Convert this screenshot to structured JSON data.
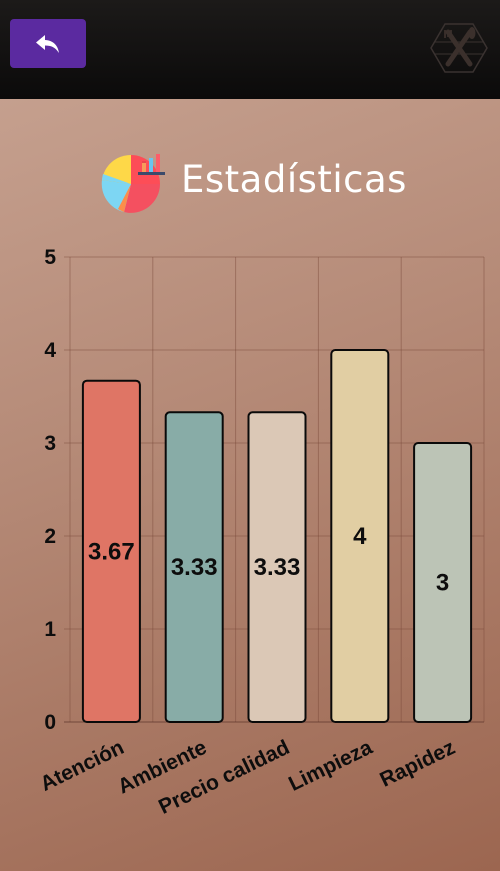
{
  "header": {
    "title": "Estadísticas"
  },
  "icons": {
    "back": "back-arrow-icon",
    "logo": "crossed-utensils-logo-icon",
    "stats": "pie-chart-stats-icon"
  },
  "colors": {
    "topbar": "#0f0e0d",
    "back_button": "#5b2aa0"
  },
  "chart_data": {
    "type": "bar",
    "title": "",
    "xlabel": "",
    "ylabel": "",
    "categories": [
      "Atención",
      "Ambiente",
      "Precio calidad",
      "Limpieza",
      "Rapidez"
    ],
    "values": [
      3.67,
      3.33,
      3.33,
      4,
      3
    ],
    "value_labels": [
      "3.67",
      "3.33",
      "3.33",
      "4",
      "3"
    ],
    "yticks": [
      "0",
      "1",
      "2",
      "3",
      "4",
      "5"
    ],
    "ylim": [
      0,
      5
    ],
    "bar_colors": [
      "#df7565",
      "#88aca7",
      "#dbc8b6",
      "#e1cea3",
      "#bcc4b6"
    ],
    "grid": true,
    "legend": "none"
  }
}
